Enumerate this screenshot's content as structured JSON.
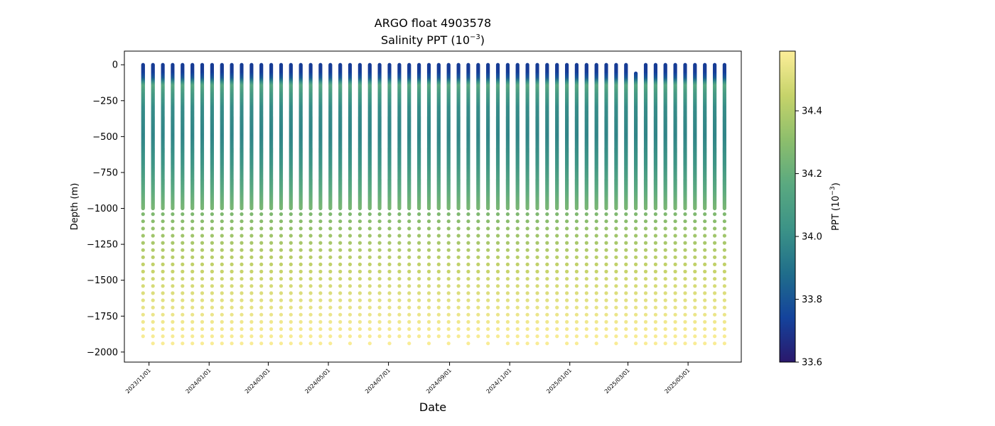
{
  "chart_data": {
    "type": "scatter",
    "title": "ARGO float 4903578",
    "subtitle": "Salinity PPT (10",
    "subtitle_exponent": "−3",
    "subtitle_suffix": ")",
    "xlabel": "Date",
    "ylabel": "Depth (m)",
    "colorbar_label": "PPT (10",
    "colorbar_label_exponent": "−3",
    "colorbar_label_suffix": ")",
    "colormap": "haline",
    "colormap_stops": [
      "#2a186c",
      "#14439c",
      "#206e8b",
      "#3c9387",
      "#5aa980",
      "#8dbe6c",
      "#c6d36a",
      "#fdee99"
    ],
    "color_range": [
      33.6,
      34.59
    ],
    "colorbar_ticks": [
      {
        "value": 33.6,
        "label": "33.6"
      },
      {
        "value": 33.8,
        "label": "33.8"
      },
      {
        "value": 34.0,
        "label": "34.0"
      },
      {
        "value": 34.2,
        "label": "34.2"
      },
      {
        "value": 34.4,
        "label": "34.4"
      }
    ],
    "xlim": [
      "2023-10-07",
      "2025-06-24"
    ],
    "ylim": [
      -2070,
      95
    ],
    "x_ticks": [
      {
        "date": "2023-11-01",
        "label": "2023/11/01"
      },
      {
        "date": "2024-01-01",
        "label": "2024/01/01"
      },
      {
        "date": "2024-03-01",
        "label": "2024/03/01"
      },
      {
        "date": "2024-05-01",
        "label": "2024/05/01"
      },
      {
        "date": "2024-07-01",
        "label": "2024/07/01"
      },
      {
        "date": "2024-09-01",
        "label": "2024/09/01"
      },
      {
        "date": "2024-11-01",
        "label": "2024/11/01"
      },
      {
        "date": "2025-01-01",
        "label": "2025/01/01"
      },
      {
        "date": "2025-03-01",
        "label": "2025/03/01"
      },
      {
        "date": "2025-05-01",
        "label": "2025/05/01"
      }
    ],
    "y_ticks": [
      {
        "value": 0,
        "label": "0"
      },
      {
        "value": -250,
        "label": "−250"
      },
      {
        "value": -500,
        "label": "−500"
      },
      {
        "value": -750,
        "label": "−750"
      },
      {
        "value": -1000,
        "label": "−1000"
      },
      {
        "value": -1250,
        "label": "−1250"
      },
      {
        "value": -1500,
        "label": "−1500"
      },
      {
        "value": -1750,
        "label": "−1750"
      },
      {
        "value": -2000,
        "label": "−2000"
      }
    ],
    "profile_dates": [
      "2023-10-26",
      "2023-11-05",
      "2023-11-15",
      "2023-11-25",
      "2023-12-05",
      "2023-12-15",
      "2023-12-25",
      "2024-01-04",
      "2024-01-14",
      "2024-01-24",
      "2024-02-03",
      "2024-02-13",
      "2024-02-23",
      "2024-03-04",
      "2024-03-14",
      "2024-03-24",
      "2024-04-03",
      "2024-04-13",
      "2024-04-23",
      "2024-05-03",
      "2024-05-13",
      "2024-05-23",
      "2024-06-02",
      "2024-06-12",
      "2024-06-22",
      "2024-07-02",
      "2024-07-12",
      "2024-07-22",
      "2024-08-01",
      "2024-08-11",
      "2024-08-21",
      "2024-08-31",
      "2024-09-10",
      "2024-09-20",
      "2024-09-30",
      "2024-10-10",
      "2024-10-20",
      "2024-10-30",
      "2024-11-09",
      "2024-11-19",
      "2024-11-29",
      "2024-12-09",
      "2024-12-19",
      "2024-12-29",
      "2025-01-08",
      "2025-01-18",
      "2025-01-28",
      "2025-02-07",
      "2025-02-17",
      "2025-02-27",
      "2025-03-09",
      "2025-03-19",
      "2025-03-29",
      "2025-04-08",
      "2025-04-18",
      "2025-04-28",
      "2025-05-08",
      "2025-05-18",
      "2025-05-28",
      "2025-06-07"
    ],
    "profile_max_depths": [
      -1925,
      -1970,
      -1970,
      -1970,
      -1970,
      -1970,
      -1970,
      -1970,
      -1970,
      -1970,
      -1970,
      -1970,
      -1970,
      -1970,
      -1970,
      -1970,
      -1970,
      -1970,
      -1970,
      -1970,
      -1930,
      -1970,
      -1930,
      -1970,
      -1930,
      -1970,
      -1930,
      -1970,
      -1930,
      -1970,
      -1930,
      -1970,
      -1930,
      -1970,
      -1930,
      -1970,
      -1930,
      -1970,
      -1970,
      -1970,
      -1970,
      -1970,
      -1930,
      -1970,
      -1970,
      -1930,
      -1970,
      -1930,
      -1970,
      -1930,
      -1970,
      -1970,
      -1970,
      -1970,
      -1970,
      -1970,
      -1970,
      -1970,
      -1970,
      -1970
    ],
    "profile_surface_depths": [
      0,
      0,
      0,
      0,
      0,
      0,
      0,
      0,
      0,
      0,
      0,
      0,
      0,
      0,
      0,
      0,
      0,
      0,
      0,
      0,
      0,
      0,
      0,
      0,
      0,
      0,
      0,
      0,
      0,
      0,
      0,
      0,
      0,
      0,
      0,
      0,
      0,
      0,
      0,
      0,
      0,
      0,
      0,
      0,
      0,
      0,
      0,
      0,
      0,
      0,
      -60,
      0,
      0,
      0,
      0,
      0,
      0,
      0,
      0,
      0
    ],
    "salinity_profile": [
      {
        "depth": 0,
        "salinity": 33.72
      },
      {
        "depth": -60,
        "salinity": 33.72
      },
      {
        "depth": -100,
        "salinity": 33.82
      },
      {
        "depth": -150,
        "salinity": 34.15
      },
      {
        "depth": -200,
        "salinity": 34.08
      },
      {
        "depth": -300,
        "salinity": 34.0
      },
      {
        "depth": -500,
        "salinity": 33.97
      },
      {
        "depth": -700,
        "salinity": 34.04
      },
      {
        "depth": -850,
        "salinity": 34.15
      },
      {
        "depth": -1000,
        "salinity": 34.25
      },
      {
        "depth": -1200,
        "salinity": 34.36
      },
      {
        "depth": -1400,
        "salinity": 34.44
      },
      {
        "depth": -1600,
        "salinity": 34.51
      },
      {
        "depth": -1800,
        "salinity": 34.56
      },
      {
        "depth": -2000,
        "salinity": 34.59
      }
    ],
    "sampling": {
      "shallow_spacing_m": 5,
      "deep_spacing_m": 50,
      "transition_depth_m": -1000
    }
  }
}
